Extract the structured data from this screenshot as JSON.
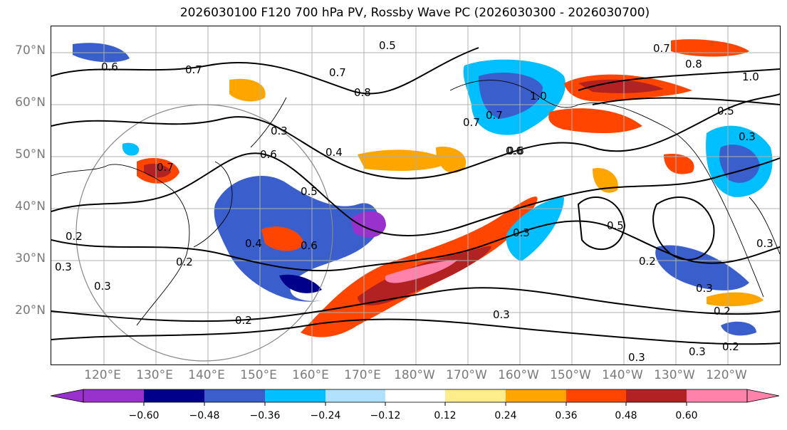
{
  "title": "2026030100 F120 700 hPa PV, Rossby Wave PC (2026030300 - 2026030700)",
  "lat_labels": [
    "70°N",
    "60°N",
    "50°N",
    "40°N",
    "30°N",
    "20°N"
  ],
  "lon_labels": [
    "120°E",
    "130°E",
    "140°E",
    "150°E",
    "160°E",
    "170°E",
    "180°W",
    "170°W",
    "160°W",
    "150°W",
    "140°W",
    "130°W",
    "120°W"
  ],
  "colorbar": {
    "colors": [
      "#9932cc",
      "#00008b",
      "#3a5fcd",
      "#00bfff",
      "#b0e2ff",
      "#ffffff",
      "#ffec8b",
      "#ffa500",
      "#ff4500",
      "#b22222",
      "#ff82ab"
    ],
    "tick_labels": [
      "−0.60",
      "−0.48",
      "−0.36",
      "−0.24",
      "−0.12",
      "0.12",
      "0.24",
      "0.36",
      "0.48",
      "0.60"
    ]
  },
  "contour_labels": [
    "0.6",
    "0.7",
    "0.5",
    "0.7",
    "0.8",
    "0.7",
    "0.7",
    "1.0",
    "0.7",
    "0.8",
    "1.0",
    "0.5",
    "0.3",
    "0.3",
    "0.6",
    "0.7",
    "0.4",
    "0.6",
    "0.5",
    "0.2",
    "0.2",
    "0.4",
    "0.6",
    "0.5",
    "0.3",
    "0.2",
    "0.3",
    "0.2",
    "0.3",
    "0.3",
    "0.2",
    "0.3",
    "0.3",
    "0.2",
    "0.3",
    "0.3",
    "0.6"
  ]
}
